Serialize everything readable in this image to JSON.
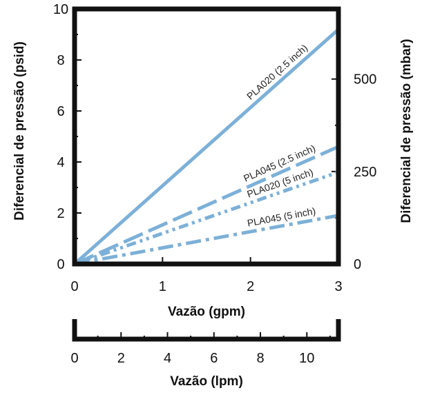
{
  "chart_data": [
    {
      "type": "line",
      "title": "",
      "xlabel": "Vazão (gpm)",
      "ylabel": "Diferencial de pressão (psid)",
      "y2label": "Diferencial de pressão (mbar)",
      "xlim": [
        0,
        3
      ],
      "ylim": [
        0,
        10
      ],
      "y2lim": [
        0,
        689.5
      ],
      "x_ticks": [
        "0",
        "1",
        "2",
        "3"
      ],
      "y_ticks": [
        "0",
        "2",
        "4",
        "6",
        "8",
        "10"
      ],
      "y2_ticks": [
        "0",
        "250",
        "500"
      ],
      "grid": false,
      "line_color": "#7cb0d8",
      "series": [
        {
          "name": "PLA020 (2.5 inch)",
          "style": "solid",
          "x": [
            0,
            3
          ],
          "y": [
            0,
            9.2
          ]
        },
        {
          "name": "PLA045 (2.5 inch)",
          "style": "long-dash",
          "x": [
            0,
            3
          ],
          "y": [
            0,
            4.6
          ]
        },
        {
          "name": "PLA020 (5 inch)",
          "style": "dash-dot-dot",
          "x": [
            0,
            3
          ],
          "y": [
            0,
            3.6
          ]
        },
        {
          "name": "PLA045 (5 inch)",
          "style": "dash-dot",
          "x": [
            0,
            3
          ],
          "y": [
            0,
            1.9
          ]
        }
      ]
    },
    {
      "type": "axis",
      "xlabel": "Vazão (lpm)",
      "xlim": [
        0,
        11.36
      ],
      "x_ticks": [
        "0",
        "2",
        "4",
        "6",
        "8",
        "10"
      ]
    }
  ]
}
